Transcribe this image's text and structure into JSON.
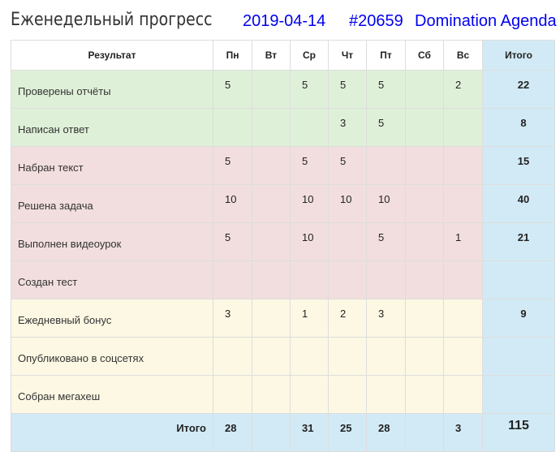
{
  "header": {
    "title": "Еженедельный прогресс",
    "date": "2019-04-14",
    "id": "#20659",
    "name": "Domination Agenda"
  },
  "colors": {
    "green": "#dff0d8",
    "red": "#f2dede",
    "yellow": "#fcf8e3",
    "blue": "#d2eaf5",
    "link": "#0000ee"
  },
  "table": {
    "columns": [
      "Результат",
      "Пн",
      "Вт",
      "Ср",
      "Чт",
      "Пт",
      "Сб",
      "Вс",
      "Итого"
    ],
    "rows": [
      {
        "label": "Проверены отчёты",
        "group": "g",
        "values": [
          "5",
          "",
          "5",
          "5",
          "5",
          "",
          "2"
        ],
        "total": "22"
      },
      {
        "label": "Написан ответ",
        "group": "g",
        "values": [
          "",
          "",
          "",
          "3",
          "5",
          "",
          ""
        ],
        "total": "8"
      },
      {
        "label": "Набран текст",
        "group": "r",
        "values": [
          "5",
          "",
          "5",
          "5",
          "",
          "",
          ""
        ],
        "total": "15"
      },
      {
        "label": "Решена задача",
        "group": "r",
        "values": [
          "10",
          "",
          "10",
          "10",
          "10",
          "",
          ""
        ],
        "total": "40"
      },
      {
        "label": "Выполнен видеоурок",
        "group": "r",
        "values": [
          "5",
          "",
          "10",
          "",
          "5",
          "",
          "1"
        ],
        "total": "21"
      },
      {
        "label": "Создан тест",
        "group": "r",
        "values": [
          "",
          "",
          "",
          "",
          "",
          "",
          ""
        ],
        "total": ""
      },
      {
        "label": "Ежедневный бонус",
        "group": "y",
        "values": [
          "3",
          "",
          "1",
          "2",
          "3",
          "",
          ""
        ],
        "total": "9"
      },
      {
        "label": "Опубликовано в соцсетях",
        "group": "y",
        "values": [
          "",
          "",
          "",
          "",
          "",
          "",
          ""
        ],
        "total": ""
      },
      {
        "label": "Собран мегахеш",
        "group": "y",
        "values": [
          "",
          "",
          "",
          "",
          "",
          "",
          ""
        ],
        "total": ""
      }
    ],
    "footer": {
      "label": "Итого",
      "values": [
        "28",
        "",
        "31",
        "25",
        "28",
        "",
        "3"
      ],
      "total": "115"
    }
  }
}
